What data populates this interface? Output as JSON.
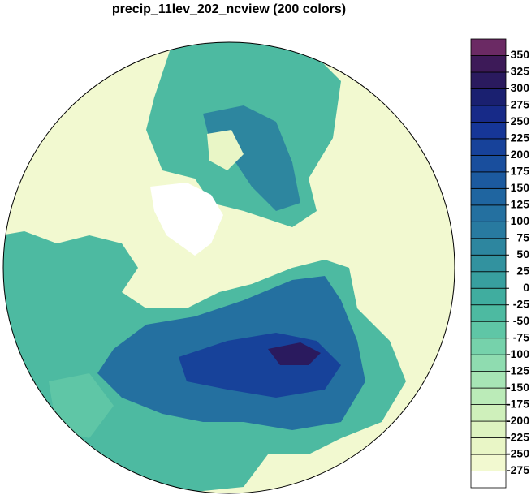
{
  "title": "precip_11lev_202_ncview (200 colors)",
  "colorbar": {
    "clim": [
      -300,
      375
    ],
    "ticks": [
      350,
      325,
      300,
      275,
      250,
      225,
      200,
      175,
      150,
      125,
      100,
      75,
      50,
      25,
      0,
      -25,
      -50,
      -75,
      -100,
      -125,
      -150,
      -175,
      -200,
      -225,
      -250,
      -275
    ],
    "colors": [
      "#ffffff",
      "#f2f9d0",
      "#e9f6c6",
      "#def3c0",
      "#cff0bb",
      "#bbebb8",
      "#a7e5b5",
      "#8fdcb0",
      "#76d2ab",
      "#5fc6a6",
      "#4dbaa1",
      "#40ad9f",
      "#389f9f",
      "#32929f",
      "#2d869f",
      "#287aa0",
      "#2470a0",
      "#1f65a0",
      "#1c5a9f",
      "#194e9d",
      "#17429a",
      "#163697",
      "#172a88",
      "#1a2070",
      "#2a1a5e",
      "#3d1a58",
      "#6b2a64"
    ]
  }
}
